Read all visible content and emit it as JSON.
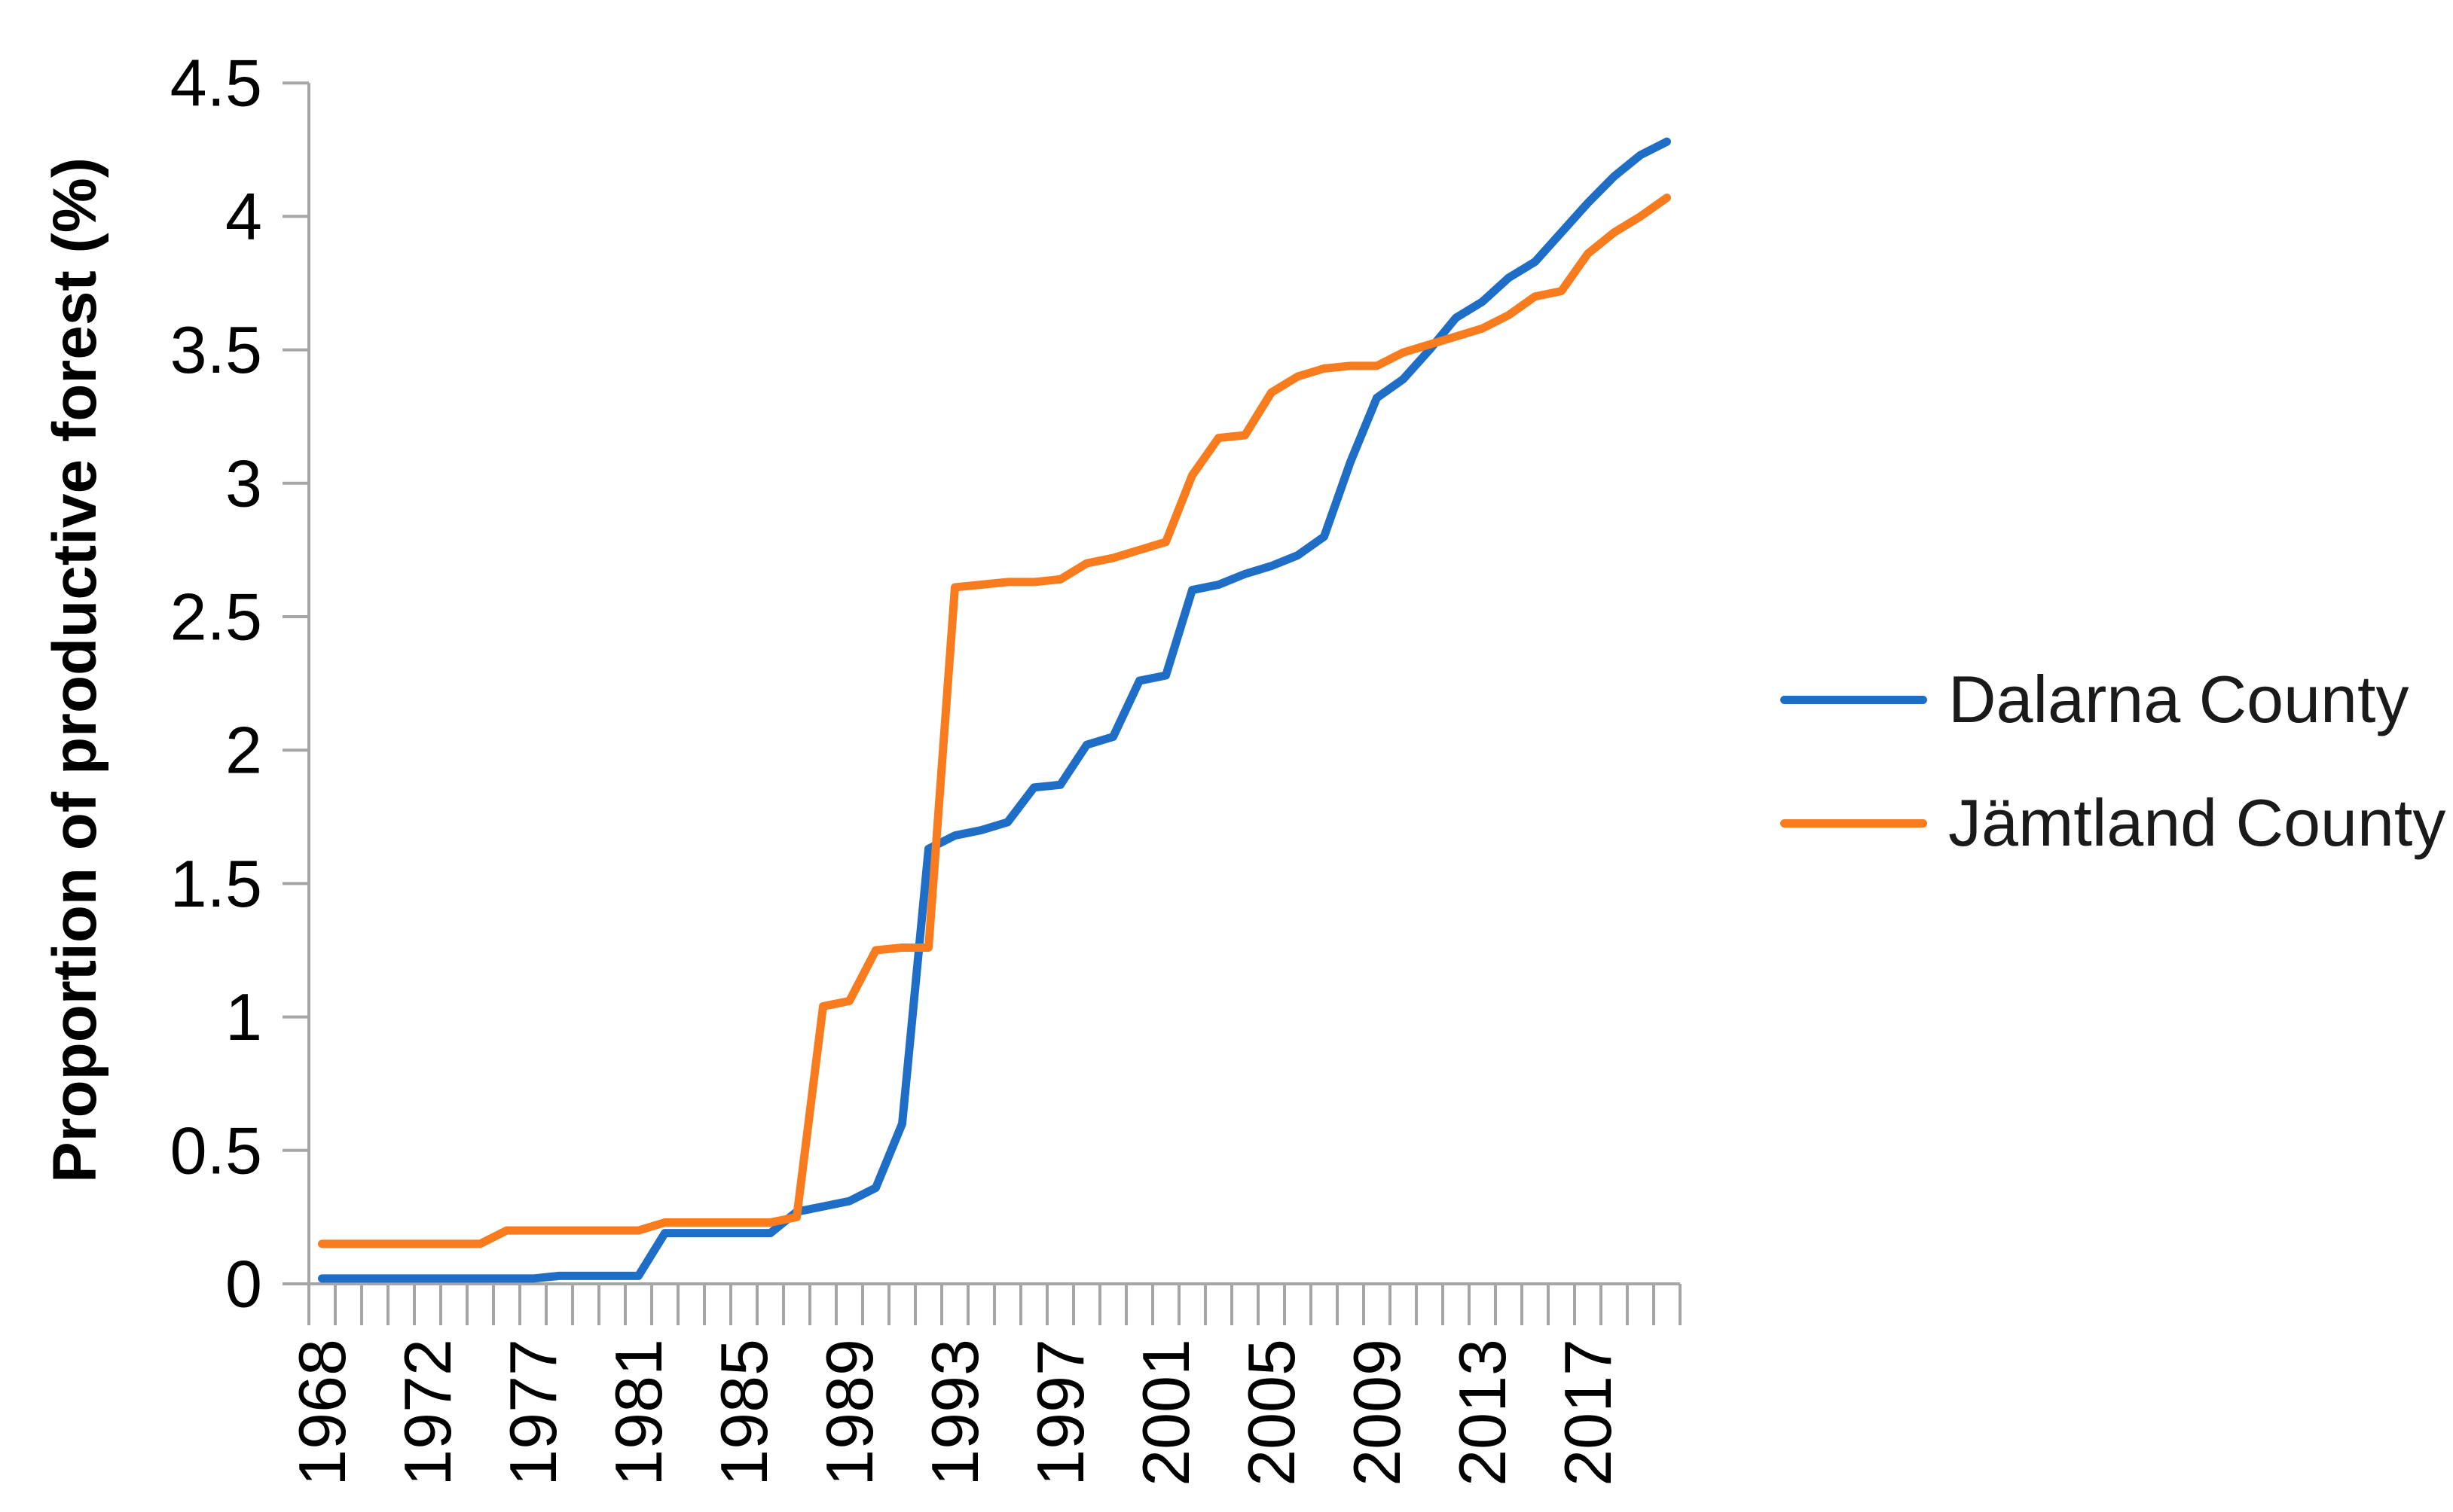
{
  "chart_data": {
    "type": "line",
    "title": "",
    "xlabel": "",
    "ylabel": "Proportion of productive forest (%)",
    "ylim": [
      0,
      4.5
    ],
    "grid": false,
    "legend_position": "right",
    "y_ticks": [
      0,
      0.5,
      1,
      1.5,
      2,
      2.5,
      3,
      3.5,
      4,
      4.5
    ],
    "y_tick_labels": [
      "0",
      "0.5",
      "1",
      "1.5",
      "2",
      "2.5",
      "3",
      "3.5",
      "4",
      "4.5"
    ],
    "x": [
      1968,
      1969,
      1970,
      1971,
      1972,
      1974,
      1975,
      1976,
      1977,
      1978,
      1979,
      1980,
      1981,
      1982,
      1983,
      1984,
      1985,
      1986,
      1987,
      1988,
      1989,
      1990,
      1991,
      1992,
      1993,
      1994,
      1995,
      1996,
      1997,
      1998,
      1999,
      2000,
      2001,
      2002,
      2003,
      2004,
      2005,
      2006,
      2007,
      2008,
      2009,
      2010,
      2011,
      2012,
      2013,
      2014,
      2015,
      2016,
      2017,
      2018,
      2019,
      2020
    ],
    "x_tick_labels": [
      "1968",
      "1972",
      "1977",
      "1981",
      "1985",
      "1989",
      "1993",
      "1997",
      "2001",
      "2005",
      "2009",
      "2013",
      "2017"
    ],
    "series": [
      {
        "name": "Dalarna County",
        "color": "#1E6EC8",
        "values": [
          0.02,
          0.02,
          0.02,
          0.02,
          0.02,
          0.02,
          0.02,
          0.02,
          0.02,
          0.03,
          0.03,
          0.03,
          0.03,
          0.19,
          0.19,
          0.19,
          0.19,
          0.19,
          0.27,
          0.29,
          0.31,
          0.36,
          0.6,
          1.63,
          1.68,
          1.7,
          1.73,
          1.86,
          1.87,
          2.02,
          2.05,
          2.26,
          2.28,
          2.6,
          2.62,
          2.66,
          2.69,
          2.73,
          2.8,
          3.08,
          3.32,
          3.39,
          3.5,
          3.62,
          3.68,
          3.77,
          3.83,
          3.94,
          4.05,
          4.15,
          4.23,
          4.28
        ]
      },
      {
        "name": "Jämtland County",
        "color": "#F87B1D",
        "values": [
          0.15,
          0.15,
          0.15,
          0.15,
          0.15,
          0.15,
          0.15,
          0.2,
          0.2,
          0.2,
          0.2,
          0.2,
          0.2,
          0.23,
          0.23,
          0.23,
          0.23,
          0.23,
          0.25,
          1.04,
          1.06,
          1.25,
          1.26,
          1.26,
          2.61,
          2.62,
          2.63,
          2.63,
          2.64,
          2.7,
          2.72,
          2.75,
          2.78,
          3.03,
          3.17,
          3.18,
          3.34,
          3.4,
          3.43,
          3.44,
          3.44,
          3.49,
          3.52,
          3.55,
          3.58,
          3.63,
          3.7,
          3.72,
          3.86,
          3.94,
          4.0,
          4.07
        ]
      }
    ]
  },
  "axis": {
    "line_color": "#A6A6A6",
    "tick_color": "#A6A6A6",
    "text_color": "#000000"
  }
}
